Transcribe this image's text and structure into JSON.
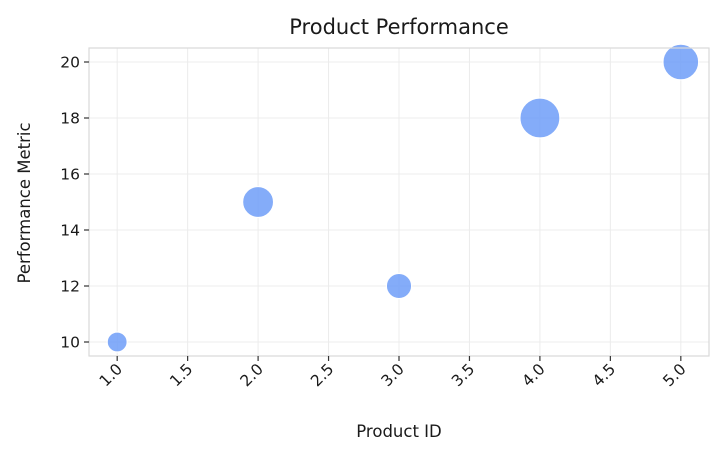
{
  "chart_data": {
    "type": "scatter",
    "title": "Product Performance",
    "xlabel": "Product ID",
    "ylabel": "Performance Metric",
    "xlim": [
      0.8,
      5.2
    ],
    "ylim": [
      9.5,
      20.5
    ],
    "xticks": [
      1.0,
      1.5,
      2.0,
      2.5,
      3.0,
      3.5,
      4.0,
      4.5,
      5.0
    ],
    "xtick_labels": [
      "1.0",
      "1.5",
      "2.0",
      "2.5",
      "3.0",
      "3.5",
      "4.0",
      "4.5",
      "5.0"
    ],
    "yticks": [
      10,
      12,
      14,
      16,
      18,
      20
    ],
    "ytick_labels": [
      "10",
      "12",
      "14",
      "16",
      "18",
      "20"
    ],
    "grid": true,
    "marker_color": "#6f9ef8",
    "points": [
      {
        "x": 1,
        "y": 10,
        "size": 1
      },
      {
        "x": 2,
        "y": 15,
        "size": 2.4
      },
      {
        "x": 3,
        "y": 12,
        "size": 1.6
      },
      {
        "x": 4,
        "y": 18,
        "size": 4
      },
      {
        "x": 5,
        "y": 20,
        "size": 3.2
      }
    ]
  }
}
